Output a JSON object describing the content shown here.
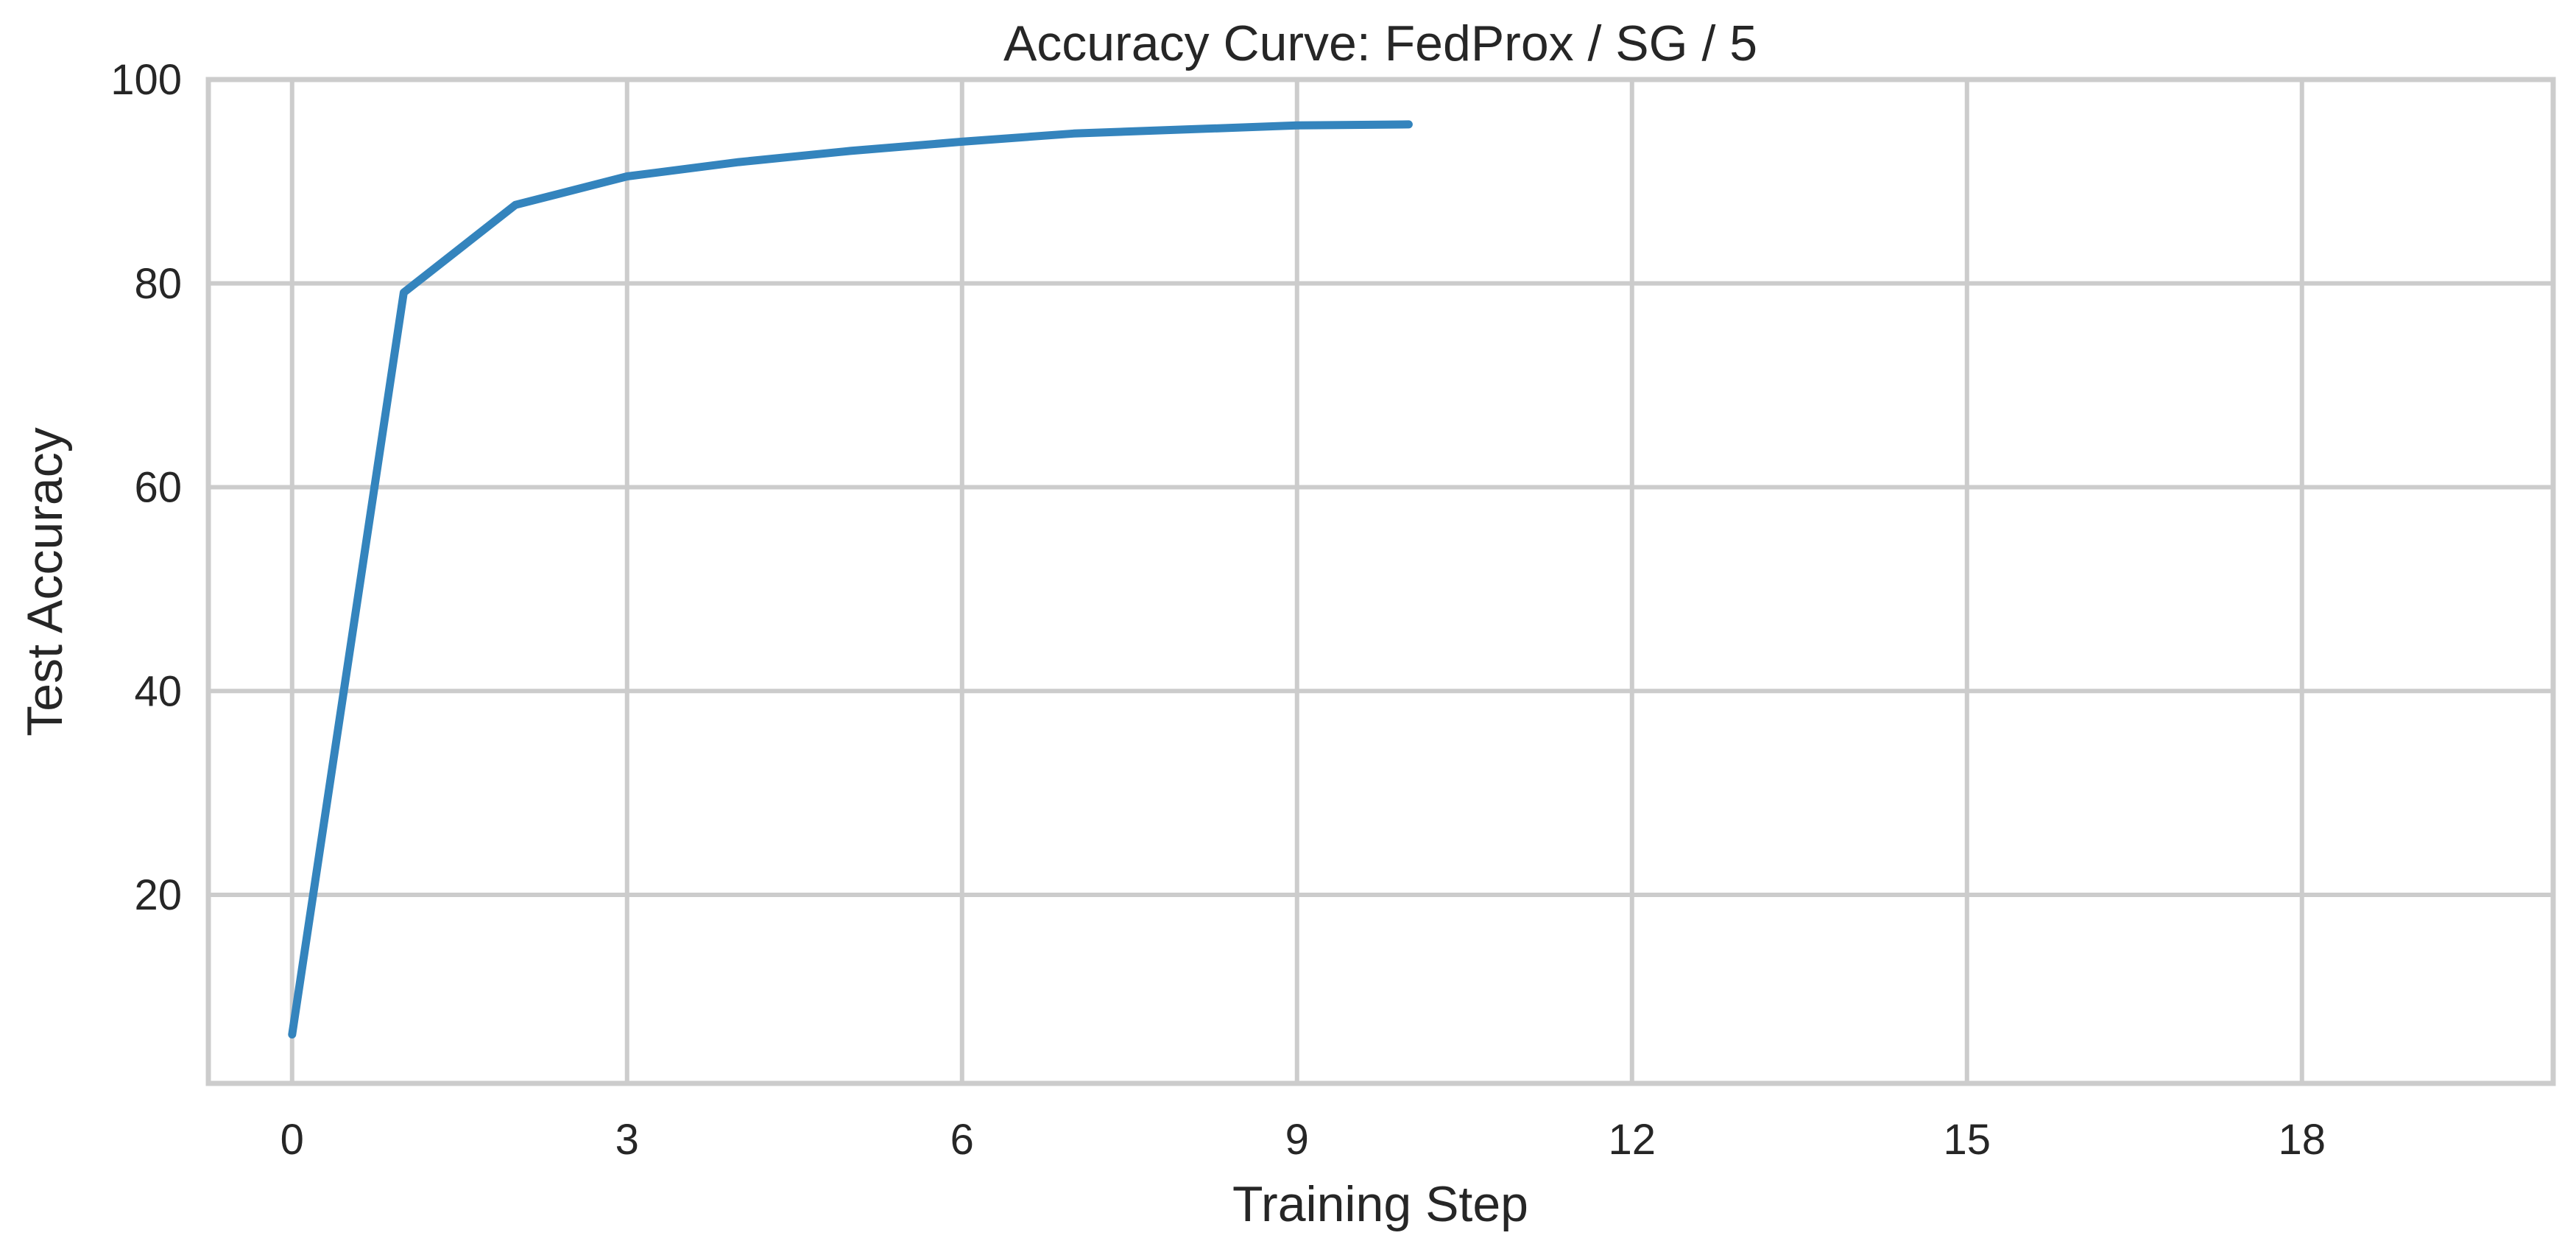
{
  "chart_data": {
    "type": "line",
    "title": "Accuracy Curve: FedProx / SG / 5",
    "xlabel": "Training Step",
    "ylabel": "Test Accuracy",
    "xlim": [
      -0.75,
      20.25
    ],
    "ylim": [
      1.5,
      100
    ],
    "x_ticks": [
      0,
      3,
      6,
      9,
      12,
      15,
      18
    ],
    "y_ticks": [
      20,
      40,
      60,
      80,
      100
    ],
    "grid": true,
    "series": [
      {
        "color": "#3484bd",
        "x": [
          0,
          1,
          2,
          3,
          4,
          5,
          6,
          7,
          8,
          9,
          10
        ],
        "y": [
          6.3,
          79.1,
          87.7,
          90.5,
          91.9,
          93.0,
          93.9,
          94.7,
          95.1,
          95.5,
          95.6
        ]
      }
    ]
  }
}
